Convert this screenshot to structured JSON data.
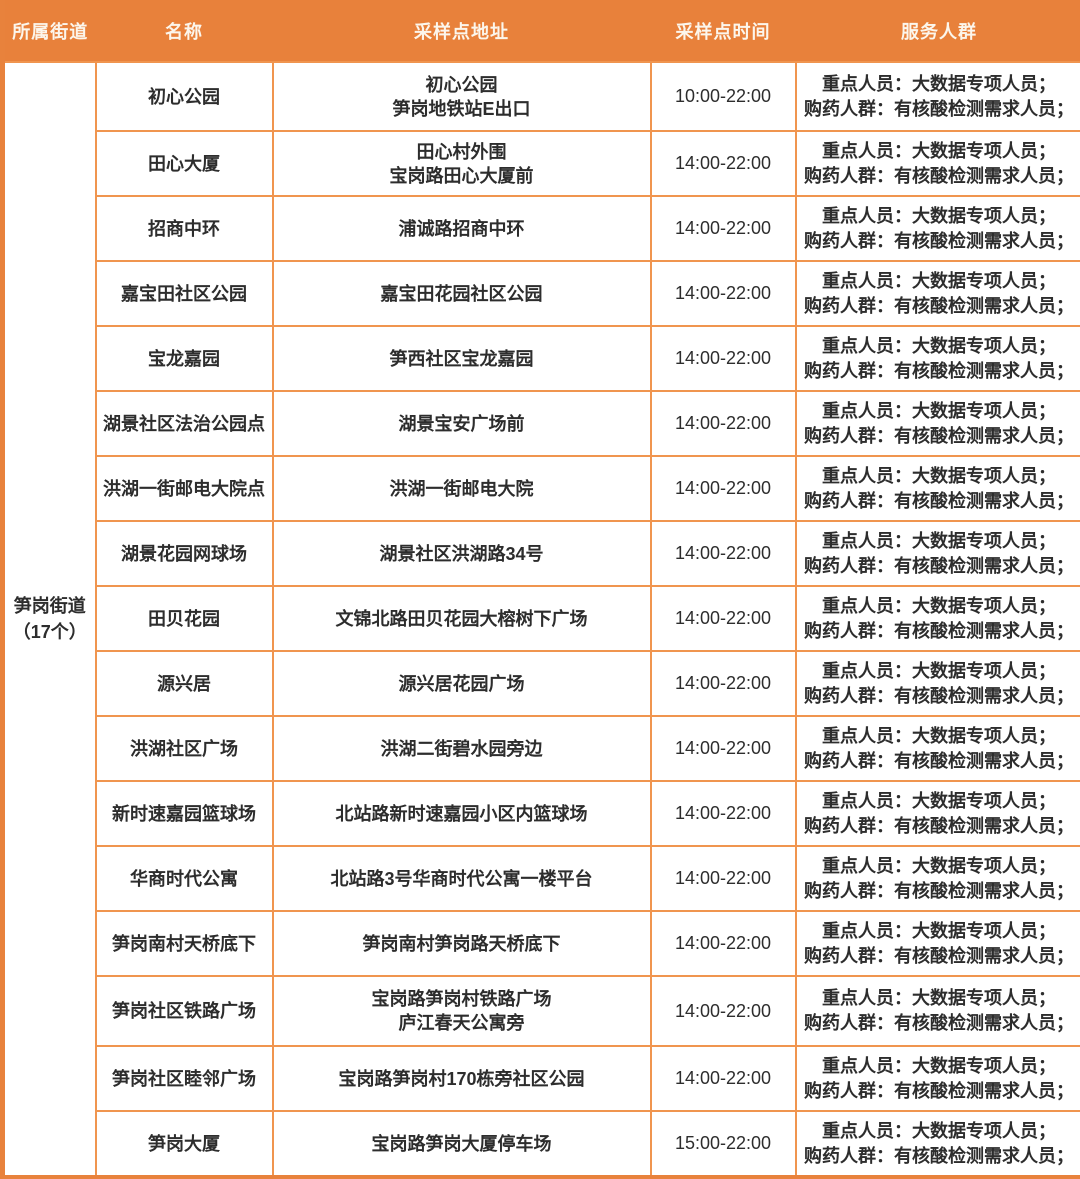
{
  "colors": {
    "header_bg": "#E8813B",
    "header_text": "#FCF6EC",
    "grid_border": "#F0954F",
    "outer_border": "#E8823C",
    "cell_text": "#2D2D2D"
  },
  "table": {
    "headers": [
      "所属街道",
      "名称",
      "采样点地址",
      "采样点时间",
      "服务人群"
    ],
    "street_group": {
      "name": "笋岗街道",
      "count_label": "（17个）"
    },
    "rows": [
      {
        "name": "初心公园",
        "address": "初心公园\n笋岗地铁站E出口",
        "time": "10:00-22:00",
        "service": "重点人员：大数据专项人员；\n购药人群：有核酸检测需求人员；"
      },
      {
        "name": "田心大厦",
        "address": "田心村外围\n宝岗路田心大厦前",
        "time": "14:00-22:00",
        "service": "重点人员：大数据专项人员；\n购药人群：有核酸检测需求人员；"
      },
      {
        "name": "招商中环",
        "address": "浦诚路招商中环",
        "time": "14:00-22:00",
        "service": "重点人员：大数据专项人员；\n购药人群：有核酸检测需求人员；"
      },
      {
        "name": "嘉宝田社区公园",
        "address": "嘉宝田花园社区公园",
        "time": "14:00-22:00",
        "service": "重点人员：大数据专项人员；\n购药人群：有核酸检测需求人员；"
      },
      {
        "name": "宝龙嘉园",
        "address": "笋西社区宝龙嘉园",
        "time": "14:00-22:00",
        "service": "重点人员：大数据专项人员；\n购药人群：有核酸检测需求人员；"
      },
      {
        "name": "湖景社区法治公园点",
        "address": "湖景宝安广场前",
        "time": "14:00-22:00",
        "service": "重点人员：大数据专项人员；\n购药人群：有核酸检测需求人员；"
      },
      {
        "name": "洪湖一街邮电大院点",
        "address": "洪湖一街邮电大院",
        "time": "14:00-22:00",
        "service": "重点人员：大数据专项人员；\n购药人群：有核酸检测需求人员；"
      },
      {
        "name": "湖景花园网球场",
        "address": "湖景社区洪湖路34号",
        "time": "14:00-22:00",
        "service": "重点人员：大数据专项人员；\n购药人群：有核酸检测需求人员；"
      },
      {
        "name": "田贝花园",
        "address": "文锦北路田贝花园大榕树下广场",
        "time": "14:00-22:00",
        "service": "重点人员：大数据专项人员；\n购药人群：有核酸检测需求人员；"
      },
      {
        "name": "源兴居",
        "address": "源兴居花园广场",
        "time": "14:00-22:00",
        "service": "重点人员：大数据专项人员；\n购药人群：有核酸检测需求人员；"
      },
      {
        "name": "洪湖社区广场",
        "address": "洪湖二街碧水园旁边",
        "time": "14:00-22:00",
        "service": "重点人员：大数据专项人员；\n购药人群：有核酸检测需求人员；"
      },
      {
        "name": "新时速嘉园篮球场",
        "address": "北站路新时速嘉园小区内篮球场",
        "time": "14:00-22:00",
        "service": "重点人员：大数据专项人员；\n购药人群：有核酸检测需求人员；"
      },
      {
        "name": "华商时代公寓",
        "address": "北站路3号华商时代公寓一楼平台",
        "time": "14:00-22:00",
        "service": "重点人员：大数据专项人员；\n购药人群：有核酸检测需求人员；"
      },
      {
        "name": "笋岗南村天桥底下",
        "address": "笋岗南村笋岗路天桥底下",
        "time": "14:00-22:00",
        "service": "重点人员：大数据专项人员；\n购药人群：有核酸检测需求人员；"
      },
      {
        "name": "笋岗社区铁路广场",
        "address": "宝岗路笋岗村铁路广场\n庐江春天公寓旁",
        "time": "14:00-22:00",
        "service": "重点人员：大数据专项人员；\n购药人群：有核酸检测需求人员；"
      },
      {
        "name": "笋岗社区睦邻广场",
        "address": "宝岗路笋岗村170栋旁社区公园",
        "time": "14:00-22:00",
        "service": "重点人员：大数据专项人员；\n购药人群：有核酸检测需求人员；"
      },
      {
        "name": "笋岗大厦",
        "address": "宝岗路笋岗大厦停车场",
        "time": "15:00-22:00",
        "service": "重点人员：大数据专项人员；\n购药人群：有核酸检测需求人员；"
      }
    ]
  }
}
